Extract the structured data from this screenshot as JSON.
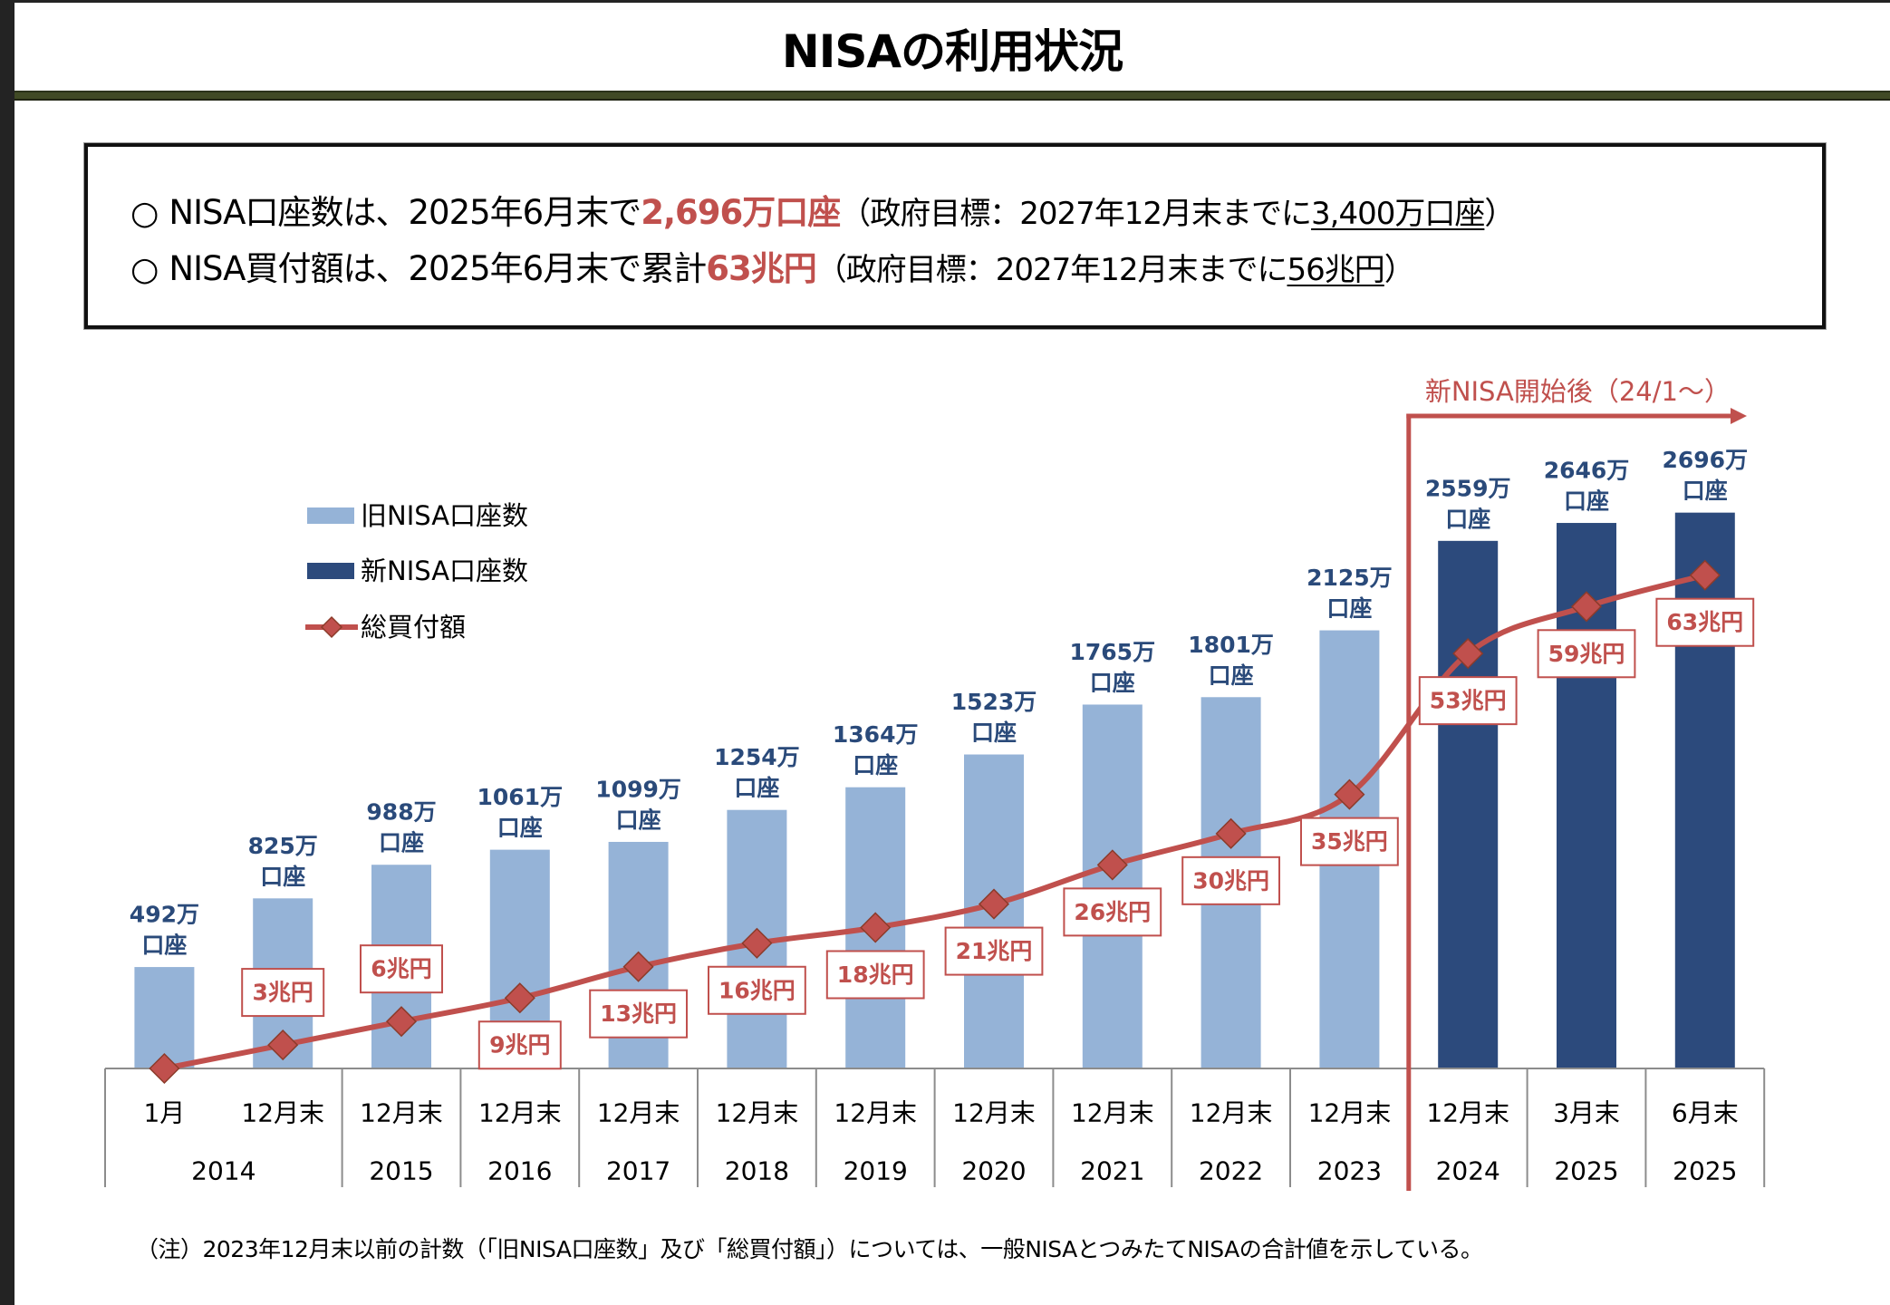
{
  "page": {
    "title": "NISAの利用状況"
  },
  "colors": {
    "title_bar": "#404A25",
    "highlight_red": "#C0504D",
    "annotation_red": "#C0504D",
    "bar_label_navy": "#2A4A7A",
    "axis_gray": "#8C8C8C"
  },
  "summary": {
    "lines": [
      {
        "bullet": "○",
        "text": "NISA口座数は、2025年6月末で",
        "highlight": "2,696万口座",
        "note_open": "（政府目標：2027年12月末までに",
        "note_target": "3,400万口座",
        "note_close": "）"
      },
      {
        "bullet": "○",
        "text": "NISA買付額は、2025年6月末で累計",
        "highlight": "63兆円",
        "note_open": "（政府目標：2027年12月末までに",
        "note_target": "56兆円",
        "note_close": "）"
      }
    ]
  },
  "chart_data": {
    "type": "bar",
    "combo": "bar+line",
    "title": "",
    "xlabel": "",
    "ylabel": "",
    "grid": false,
    "legend": {
      "placement": "top-left"
    },
    "categories": [
      "1月",
      "12月末",
      "12月末",
      "12月末",
      "12月末",
      "12月末",
      "12月末",
      "12月末",
      "12月末",
      "12月末",
      "12月末",
      "12月末",
      "3月末",
      "6月末"
    ],
    "category_years": [
      "2014",
      "2014",
      "2015",
      "2016",
      "2017",
      "2018",
      "2019",
      "2020",
      "2021",
      "2022",
      "2023",
      "2024",
      "2025",
      "2025"
    ],
    "year_groups": [
      {
        "label": "2014",
        "span": 2
      },
      {
        "label": "2015",
        "span": 1
      },
      {
        "label": "2016",
        "span": 1
      },
      {
        "label": "2017",
        "span": 1
      },
      {
        "label": "2018",
        "span": 1
      },
      {
        "label": "2019",
        "span": 1
      },
      {
        "label": "2020",
        "span": 1
      },
      {
        "label": "2021",
        "span": 1
      },
      {
        "label": "2022",
        "span": 1
      },
      {
        "label": "2023",
        "span": 1
      },
      {
        "label": "2024",
        "span": 1
      },
      {
        "label": "2025",
        "span": 1
      },
      {
        "label": "2025",
        "span": 1
      }
    ],
    "ylim": [
      0,
      3000
    ],
    "y2lim": [
      0,
      79
    ],
    "series": [
      {
        "name": "旧NISA口座数",
        "type": "bar",
        "unit": "万口座",
        "color": "#95B3D7",
        "values": [
          492,
          825,
          988,
          1061,
          1099,
          1254,
          1364,
          1523,
          1765,
          1801,
          2125,
          null,
          null,
          null
        ],
        "labels": [
          [
            "492万",
            "口座"
          ],
          [
            "825万",
            "口座"
          ],
          [
            "988万",
            "口座"
          ],
          [
            "1061万",
            "口座"
          ],
          [
            "1099万",
            "口座"
          ],
          [
            "1254万",
            "口座"
          ],
          [
            "1364万",
            "口座"
          ],
          [
            "1523万",
            "口座"
          ],
          [
            "1765万",
            "口座"
          ],
          [
            "1801万",
            "口座"
          ],
          [
            "2125万",
            "口座"
          ],
          null,
          null,
          null
        ]
      },
      {
        "name": "新NISA口座数",
        "type": "bar",
        "unit": "万口座",
        "color": "#2C4A7C",
        "values": [
          null,
          null,
          null,
          null,
          null,
          null,
          null,
          null,
          null,
          null,
          null,
          2559,
          2646,
          2696
        ],
        "labels": [
          null,
          null,
          null,
          null,
          null,
          null,
          null,
          null,
          null,
          null,
          null,
          [
            "2559万",
            "口座"
          ],
          [
            "2646万",
            "口座"
          ],
          [
            "2696万",
            "口座"
          ]
        ]
      },
      {
        "name": "総買付額",
        "type": "line",
        "unit": "兆円",
        "color": "#C0504D",
        "marker_color": "#C0504D",
        "marker_edge_color": "#8C3B2A",
        "marker": "diamond",
        "smooth": true,
        "axis": "secondary",
        "values": [
          0,
          3,
          6,
          9,
          13,
          16,
          18,
          21,
          26,
          30,
          35,
          53,
          59,
          63
        ],
        "labels": [
          null,
          "3兆円",
          "6兆円",
          "9兆円",
          "13兆円",
          "16兆円",
          "18兆円",
          "21兆円",
          "26兆円",
          "30兆円",
          "35兆円",
          "53兆円",
          "59兆円",
          "63兆円"
        ],
        "label_positions": [
          null,
          "above",
          "above",
          "below",
          "below",
          "below",
          "below",
          "below",
          "below",
          "below",
          "below",
          "below",
          "below",
          "below"
        ]
      }
    ],
    "annotation": {
      "text": "新NISA開始後（24/1～）",
      "start_category_index": 11,
      "direction": "right",
      "color": "#C0504D"
    }
  },
  "footnote": "（注）2023年12月末以前の計数（「旧NISA口座数」及び「総買付額」）については、一般NISAとつみたてNISAの合計値を示している。"
}
